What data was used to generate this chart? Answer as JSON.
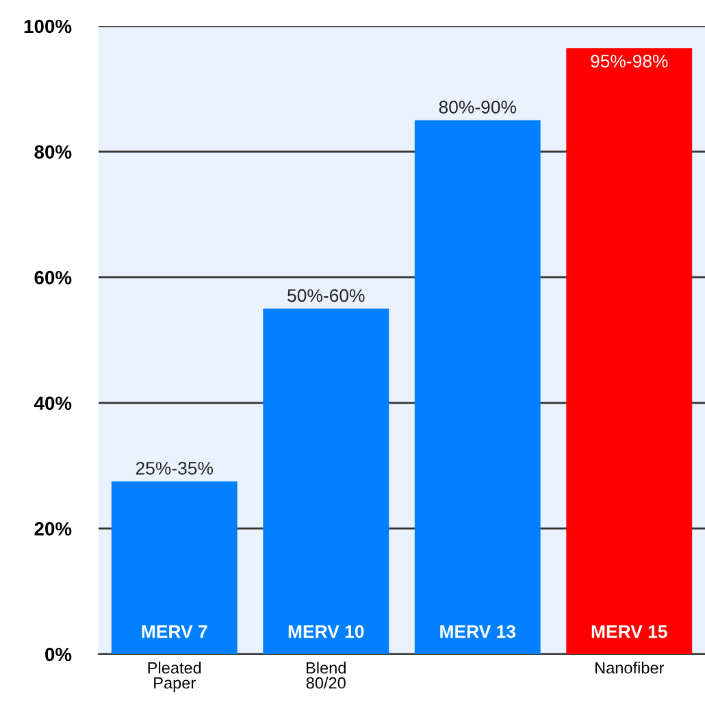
{
  "chart_data": {
    "type": "bar",
    "categories": [
      "Pleated\nPaper",
      "Blend\n80/20",
      null,
      "Nanofiber"
    ],
    "values": [
      27.5,
      55,
      85,
      96.5
    ],
    "colors": [
      "#0080ff",
      "#0080ff",
      "#0080ff",
      "#ff0000"
    ],
    "annotations": [
      {
        "text": "MERV 7",
        "x": "Pleated\nPaper",
        "y": 0
      },
      {
        "text": "MERV 10",
        "x": "Blend\n80/20",
        "y": 0
      },
      {
        "text": "MERV 13",
        "y": 0
      },
      {
        "text": "MERV 15",
        "x": "Nanofiber",
        "y": 0
      },
      {
        "text": "25%-35%",
        "x": "Pleated\nPaper",
        "y": 27.5
      },
      {
        "text": "50%-60%",
        "x": "Blend\n80/20",
        "y": 55
      },
      {
        "text": "80%-90%",
        "y": 85
      },
      {
        "text": "95%-98%",
        "x": "Nanofiber",
        "y": 96.5
      }
    ],
    "ylim": [
      0,
      100
    ],
    "yticks": [
      {
        "value": 0,
        "label": "0%"
      },
      {
        "value": 20,
        "label": "20%"
      },
      {
        "value": 40,
        "label": "40%"
      },
      {
        "value": 60,
        "label": "60%"
      },
      {
        "value": 80,
        "label": "80%"
      },
      {
        "value": 100,
        "label": "100%"
      }
    ],
    "grid": "y",
    "legend": false
  }
}
